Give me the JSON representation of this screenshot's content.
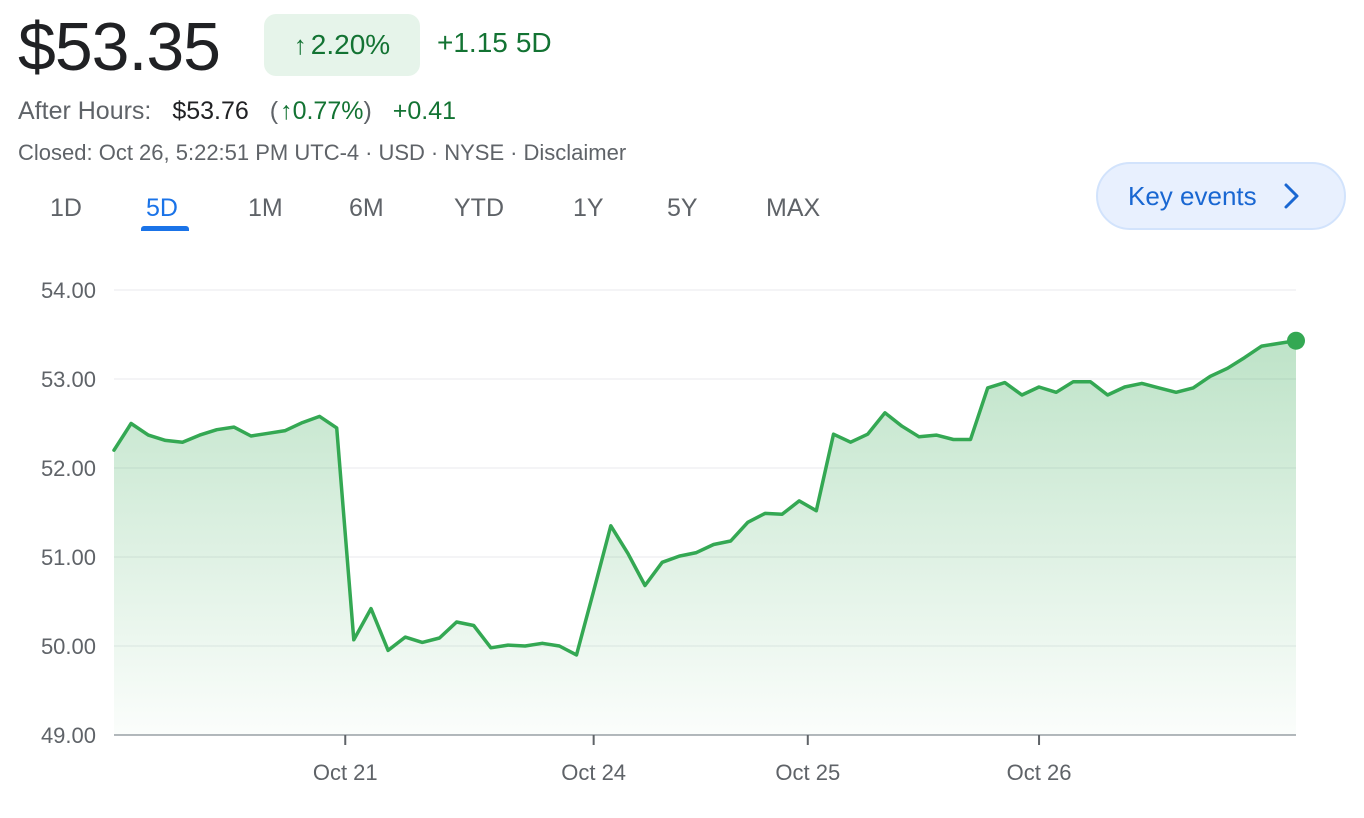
{
  "quote": {
    "price": "$53.35",
    "change_pct": "2.20%",
    "change_arrow": "↑",
    "change_abs": "+1.15",
    "range_label": "5D"
  },
  "after_hours": {
    "label": "After Hours:",
    "price": "$53.76",
    "open_paren": "(",
    "arrow": "↑",
    "pct": "0.77%",
    "close_paren": ")",
    "change": "+0.41"
  },
  "meta": {
    "closed": "Closed: Oct 26, 5:22:51 PM UTC-4",
    "currency": "USD",
    "exchange": "NYSE",
    "disclaimer": "Disclaimer",
    "separator": "·"
  },
  "tabs": [
    {
      "label": "1D",
      "active": false
    },
    {
      "label": "5D",
      "active": true
    },
    {
      "label": "1M",
      "active": false
    },
    {
      "label": "6M",
      "active": false
    },
    {
      "label": "YTD",
      "active": false
    },
    {
      "label": "1Y",
      "active": false
    },
    {
      "label": "5Y",
      "active": false
    },
    {
      "label": "MAX",
      "active": false
    }
  ],
  "key_events": {
    "label": "Key events",
    "icon": "chevron-right-icon"
  },
  "colors": {
    "up_green": "#137333",
    "line_green": "#34a853",
    "badge_bg": "#e6f4ea",
    "accent_blue": "#1a73e8",
    "key_events_bg": "#e8f0fe"
  },
  "chart_data": {
    "type": "area",
    "ylim": [
      49,
      54
    ],
    "yticks": [
      "54.00",
      "53.00",
      "52.00",
      "51.00",
      "50.00",
      "49.00"
    ],
    "ytick_values": [
      54,
      53,
      52,
      51,
      50,
      49
    ],
    "xticks": [
      {
        "label": "Oct 21",
        "index": 13.5
      },
      {
        "label": "Oct 24",
        "index": 28
      },
      {
        "label": "Oct 25",
        "index": 40.5
      },
      {
        "label": "Oct 26",
        "index": 54
      }
    ],
    "grid": true,
    "last_point_marker": true,
    "values": [
      52.2,
      52.5,
      52.37,
      52.31,
      52.29,
      52.37,
      52.43,
      52.46,
      52.36,
      52.39,
      52.42,
      52.51,
      52.58,
      52.45,
      50.07,
      50.42,
      49.95,
      50.1,
      50.04,
      50.09,
      50.27,
      50.23,
      49.98,
      50.01,
      50.0,
      50.03,
      50.0,
      49.9,
      50.62,
      51.35,
      51.04,
      50.68,
      50.94,
      51.01,
      51.05,
      51.14,
      51.18,
      51.39,
      51.49,
      51.48,
      51.63,
      51.52,
      52.38,
      52.29,
      52.38,
      52.62,
      52.47,
      52.35,
      52.37,
      52.32,
      52.32,
      52.9,
      52.96,
      52.82,
      52.91,
      52.85,
      52.97,
      52.97,
      52.82,
      52.91,
      52.95,
      52.9,
      52.85,
      52.9,
      53.03,
      53.12,
      53.24,
      53.37,
      53.4,
      53.43
    ]
  }
}
